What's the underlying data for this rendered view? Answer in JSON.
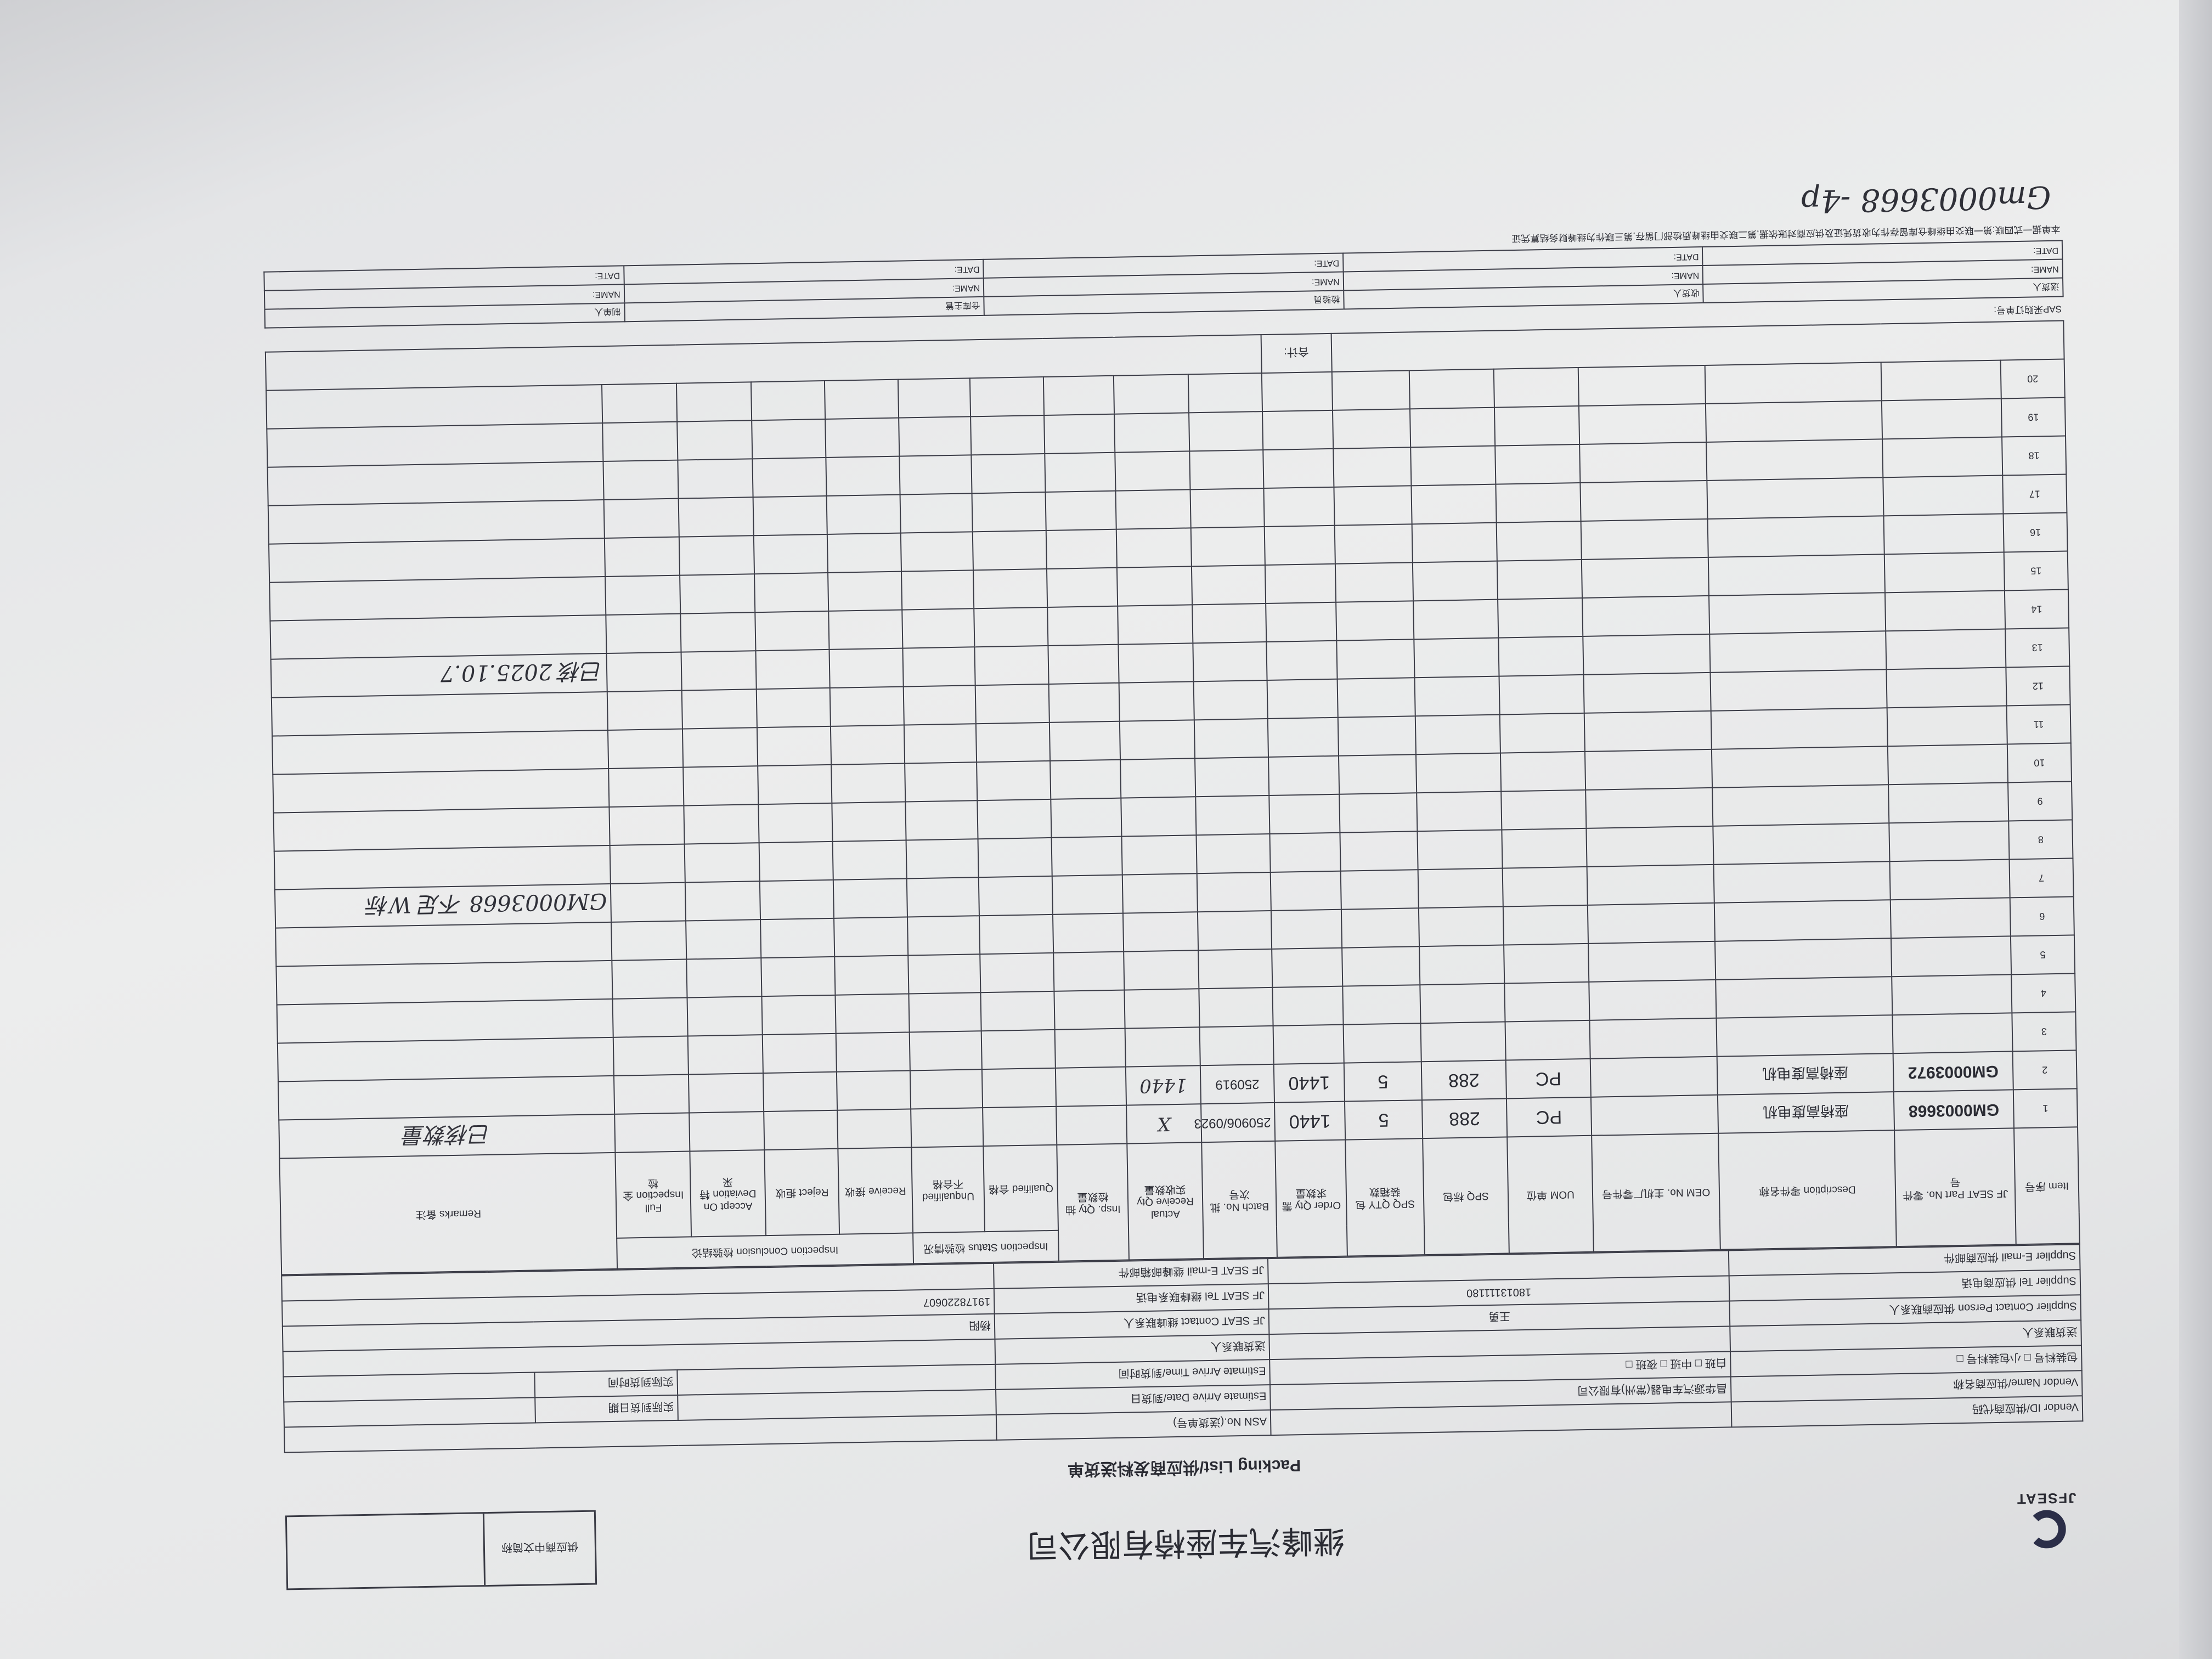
{
  "header": {
    "logo_text": "JFSEAT",
    "company_title": "继峰汽车座椅有限公司",
    "form_title": "Packing List/供应商发料送货单",
    "corner_box_label": "供应商中文简称"
  },
  "info": {
    "asn_label": "ASN No.(送货单号)",
    "vendor_id_label": "Vendor ID/供应商代码",
    "estimate_date_label": "Estimate Arrive Date/到货日",
    "actual_date_label": "实际到货日期",
    "vendor_name_label": "Vendor Name/供应商名称",
    "vendor_name_value": "昌华源汽车电器(常州)有限公司",
    "estimate_time_label": "Estimate Arrive Time/到货时间",
    "actual_time_label": "实际到货时间",
    "shift_options": "白班 □    中班 □    夜班 □",
    "package_options": "包装料号 □    小包装料号 □",
    "delivery_contact_label": "送货联系人",
    "receiving_contact_label": "送货联系人",
    "supplier_contact_label": "Supplier Contact Person 供应商联系人",
    "supplier_contact_value": "王勇",
    "jf_contact_label": "JF SEAT Contact 继峰联系人",
    "jf_contact_value": "杨阳",
    "supplier_tel_label": "Supplier Tel 供应商电话",
    "supplier_tel_value": "18013111180",
    "jf_tel_label": "JF SEAT Tel 继峰联系电话",
    "jf_tel_value": "19178220607",
    "supplier_email_label": "Supplier E-mail 供应商邮件",
    "jf_email_label": "JF SEAT E-mail 继峰邮箱邮件"
  },
  "columns": {
    "item": "Item 序号",
    "part_no": "JF SEAT Part No. 零件号",
    "description": "Description 零件名称",
    "oem": "OEM No. 主机厂零件号",
    "uom": "UOM 单位",
    "spq": "SPQ 标包",
    "spq_qty": "SPQ QTY 包装箱数",
    "order_qty": "Order Qty 需求数量",
    "batch": "Batch No. 批次号",
    "actual": "Actual Receive Qty 实收数量",
    "insp_qty": "Insp. Qty 抽检数量",
    "inspection_status": "Inspection Status 检验情况",
    "qualified": "Qualified 合格",
    "unqualified": "Unqualified 不合格",
    "inspection_conclusion": "Inspection Conclusion 检验结论",
    "receive": "Receive 接收",
    "reject": "Reject 拒收",
    "accept": "Accept On Deviation 特采",
    "full": "Full Inspection 全检",
    "remarks": "Remarks 备注"
  },
  "rows": [
    {
      "item": "1",
      "part_no": "GM0003668",
      "description": "座椅高度电机",
      "oem": "",
      "uom": "PC",
      "spq": "288",
      "spq_qty": "5",
      "order_qty": "1440",
      "batch": "250906/0923",
      "actual": "X",
      "remarks": "已核数量"
    },
    {
      "item": "2",
      "part_no": "GM0003972",
      "description": "座椅高度电机",
      "oem": "",
      "uom": "PC",
      "spq": "288",
      "spq_qty": "5",
      "order_qty": "1440",
      "batch": "250919",
      "actual": "1440",
      "remarks": ""
    },
    {
      "item": "3"
    },
    {
      "item": "4"
    },
    {
      "item": "5"
    },
    {
      "item": "6"
    },
    {
      "item": "7"
    },
    {
      "item": "8"
    },
    {
      "item": "9"
    },
    {
      "item": "10"
    },
    {
      "item": "11"
    },
    {
      "item": "12"
    },
    {
      "item": "13"
    },
    {
      "item": "14"
    },
    {
      "item": "15"
    },
    {
      "item": "16"
    },
    {
      "item": "17"
    },
    {
      "item": "18"
    },
    {
      "item": "19"
    },
    {
      "item": "20"
    }
  ],
  "total_label": "合计:",
  "sap_label": "SAP采购订单号:",
  "signatures": {
    "roles": [
      "送货人",
      "收货人",
      "检验员",
      "仓库主管",
      "制单人"
    ],
    "name_label": "NAME:",
    "date_label": "DATE:"
  },
  "footer_note": "本单据一式四联:第一联交由继峰仓库留存作为收货凭证及供应商对账依据,第二联交由继峰质检部门留存,第三联作为继峰财务结算凭证",
  "handwriting": {
    "note_1": "GM0003668 不足 W标",
    "note_2": "已核 2025.10.7",
    "signer": "Gm0003668 -4p"
  }
}
